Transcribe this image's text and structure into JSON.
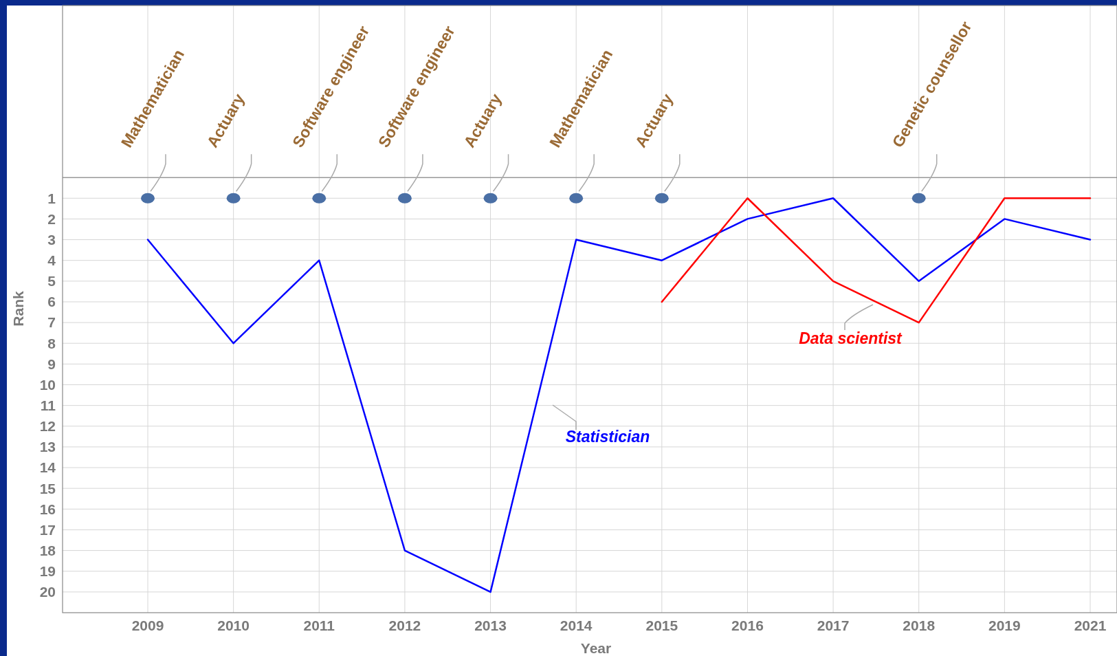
{
  "chart_data": {
    "type": "line",
    "xlabel": "Year",
    "ylabel": "Rank",
    "categories": [
      "2009",
      "2010",
      "2011",
      "2012",
      "2013",
      "2014",
      "2015",
      "2016",
      "2017",
      "2018",
      "2019",
      "2021"
    ],
    "ylim": [
      21,
      -8.3
    ],
    "yticks": [
      1,
      2,
      3,
      4,
      5,
      6,
      7,
      8,
      9,
      10,
      11,
      12,
      13,
      14,
      15,
      16,
      17,
      18,
      19,
      20
    ],
    "grid": true,
    "ref_lines": [
      {
        "axis": "y",
        "value": 0,
        "color": "#999999"
      }
    ],
    "series": [
      {
        "name": "Statistician",
        "color": "#0000ff",
        "values": [
          3,
          8,
          4,
          18,
          20,
          3,
          4,
          2,
          1,
          5,
          2,
          3
        ]
      },
      {
        "name": "Data scientist",
        "color": "#ff0000",
        "values": [
          null,
          null,
          null,
          null,
          null,
          null,
          6,
          1,
          5,
          7,
          1,
          1
        ]
      },
      {
        "type": "scatter",
        "color": "#4a6fa5",
        "values": [
          1,
          1,
          1,
          1,
          1,
          1,
          1,
          null,
          null,
          1,
          null,
          null
        ],
        "value_labels": [
          "Mathematician",
          "Actuary",
          "Software engineer",
          "Software engineer",
          "Actuary",
          "Mathematician",
          "Actuary",
          null,
          null,
          "Genetic counsellor",
          null,
          null
        ]
      }
    ]
  }
}
